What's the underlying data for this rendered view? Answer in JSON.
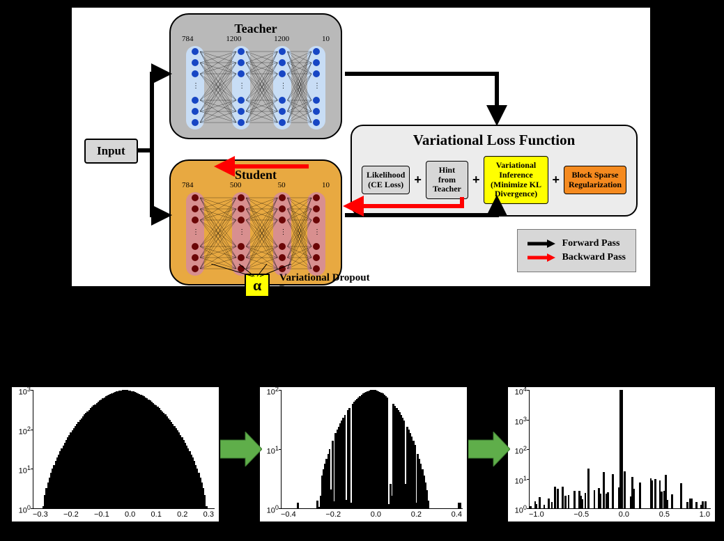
{
  "diagram": {
    "input_label": "Input",
    "teacher": {
      "title": "Teacher",
      "layers": [
        "784",
        "1200",
        "1200",
        "10"
      ],
      "box_color": "#b9b9b9",
      "col_color": "#c8ddf5",
      "node_color": "#1746c4"
    },
    "student": {
      "title": "Student",
      "layers": [
        "784",
        "500",
        "50",
        "10"
      ],
      "box_color": "#e8a941",
      "col_color": "#d88f8f",
      "node_color": "#6b0606"
    },
    "alpha_symbol": "α",
    "alpha_caption": "Variational Dropout Parameters",
    "loss": {
      "title": "Variational Loss Function",
      "terms": [
        "Likelihood (CE Loss)",
        "Hint from Teacher",
        "Variational Inference (Minimize KL Divergence)",
        "Block Sparse Regularization"
      ],
      "term_colors": [
        "#d7d7d7",
        "#d7d7d7",
        "#ffff00",
        "#f58a1f"
      ],
      "plus": "+"
    },
    "legend": {
      "forward": "Forward Pass",
      "backward": "Backward Pass",
      "forward_color": "#000000",
      "backward_color": "#ff0000"
    },
    "arrow_stroke": 5
  },
  "histograms": {
    "arrow_color": "#5fae4a",
    "plots": [
      {
        "xlim": [
          -0.3,
          0.3
        ],
        "xticks": [
          "−0.3",
          "−0.2",
          "−0.1",
          "0.0",
          "0.1",
          "0.2",
          "0.3"
        ],
        "yticks_exp": [
          0,
          1,
          2,
          3
        ],
        "shape": "dome_full",
        "title_fontsize": 11
      },
      {
        "xlim": [
          -0.4,
          0.4
        ],
        "xticks": [
          "−0.4",
          "−0.2",
          "0.0",
          "0.2",
          "0.4"
        ],
        "yticks_exp": [
          0,
          1,
          2
        ],
        "shape": "dome_narrow",
        "title_fontsize": 11
      },
      {
        "xlim": [
          -1.0,
          1.0
        ],
        "xticks": [
          "−1.0",
          "−0.5",
          "0.0",
          "0.5",
          "1.0"
        ],
        "yticks_exp": [
          0,
          1,
          2,
          3,
          4
        ],
        "shape": "spike_sparse",
        "title_fontsize": 11
      }
    ]
  }
}
